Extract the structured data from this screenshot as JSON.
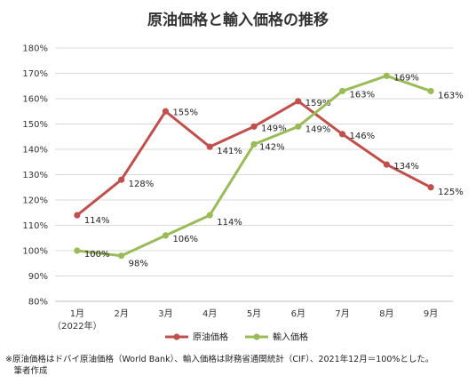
{
  "chart_data": {
    "type": "line",
    "title": "原油価格と輸入価格の推移",
    "categories": [
      "1月",
      "2月",
      "3月",
      "4月",
      "5月",
      "6月",
      "7月",
      "8月",
      "9月"
    ],
    "category_sublabel": "（2022年）",
    "ylim": [
      80,
      180
    ],
    "yticks": [
      "80%",
      "90%",
      "100%",
      "110%",
      "120%",
      "130%",
      "140%",
      "150%",
      "160%",
      "170%",
      "180%"
    ],
    "grid": true,
    "legend": "bottom",
    "series": [
      {
        "name": "原油価格",
        "color": "#c0504d",
        "values": [
          114,
          128,
          155,
          141,
          149,
          159,
          146,
          134,
          125
        ],
        "labels": [
          "114%",
          "128%",
          "155%",
          "141%",
          "149%",
          "159%",
          "146%",
          "134%",
          "125%"
        ]
      },
      {
        "name": "輸入価格",
        "color": "#9bbb59",
        "values": [
          100,
          98,
          106,
          114,
          142,
          149,
          163,
          169,
          163
        ],
        "labels": [
          "100%",
          "98%",
          "106%",
          "114%",
          "142%",
          "149%",
          "163%",
          "169%",
          "163%"
        ]
      }
    ]
  },
  "note": {
    "line1": "※原油価格はドバイ原油価格（World Bank）、輸入価格は財務省通関統計（CIF）、2021年12月＝100%とした。",
    "line2": "　筆者作成"
  }
}
